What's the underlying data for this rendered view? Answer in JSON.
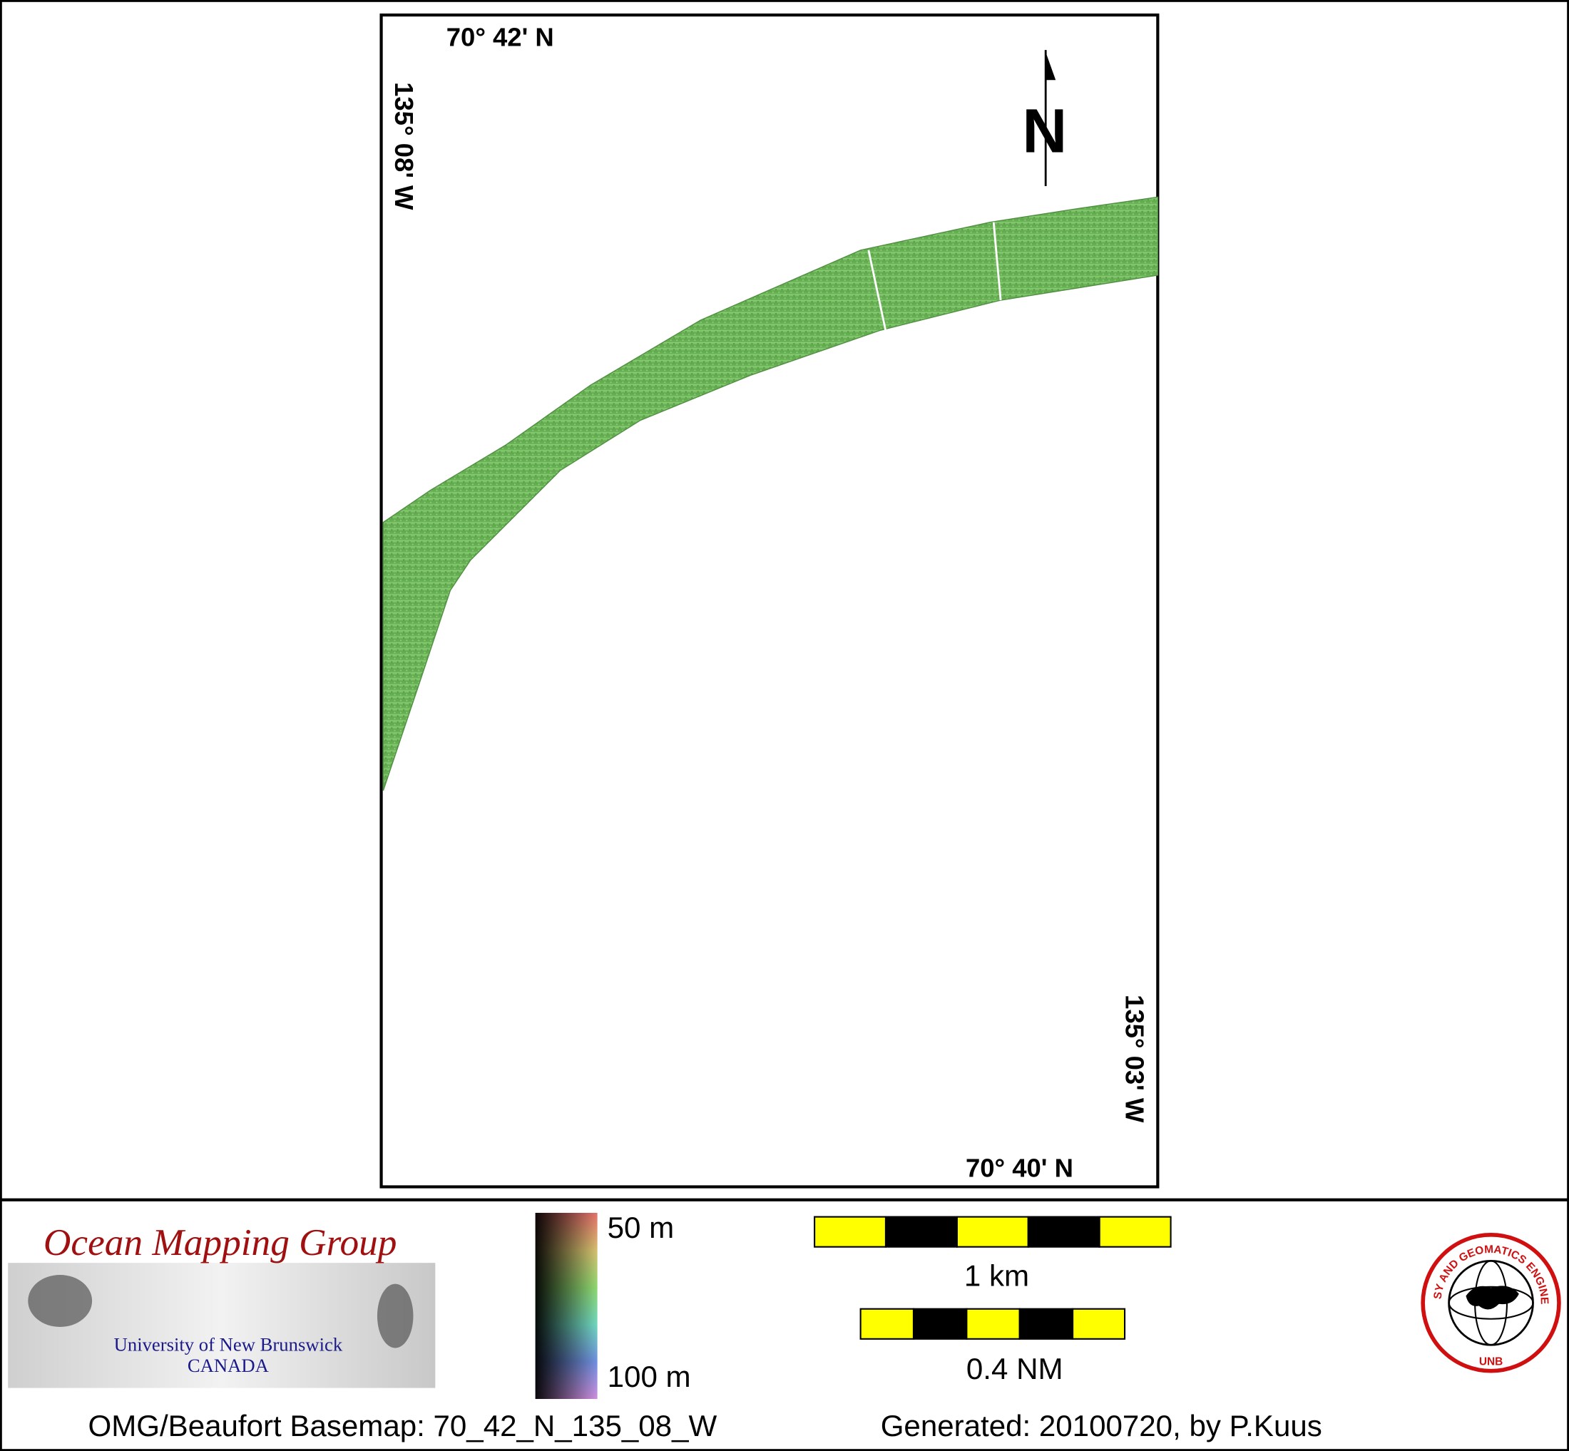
{
  "map": {
    "top_latitude": "70° 42' N",
    "left_longitude": "135° 08' W",
    "right_longitude": "135° 03' W",
    "bottom_latitude": "70° 40' N",
    "north_label": "N"
  },
  "logo": {
    "title": "Ocean Mapping Group",
    "university": "University of New Brunswick",
    "country": "CANADA"
  },
  "depth_legend": {
    "top_label": "50 m",
    "bottom_label": "100 m"
  },
  "scale_bars": {
    "metric_label": "1 km",
    "nautical_label": "0.4 NM"
  },
  "seal": {
    "ring_text": "GEODESY AND GEOMATICS ENGINEERING",
    "bottom_text": "UNB"
  },
  "footer": {
    "basemap": "OMG/Beaufort Basemap: 70_42_N_135_08_W",
    "generated": "Generated: 20100720, by P.Kuus"
  }
}
